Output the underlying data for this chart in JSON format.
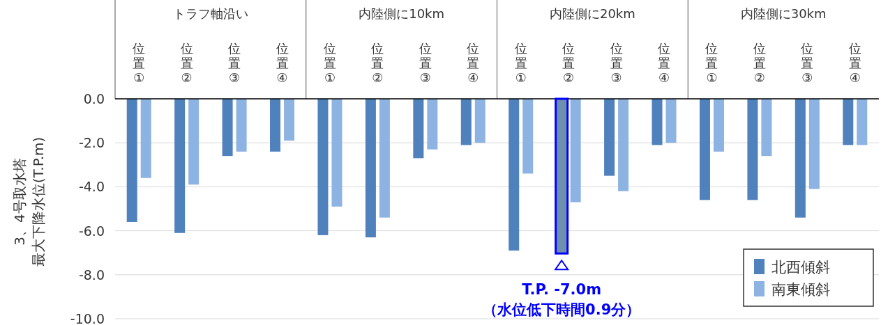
{
  "chart_data": {
    "type": "bar",
    "ylabel": "3、4号取水塔最大下降水位(T.P.m)",
    "categories": [
      "位置①",
      "位置②",
      "位置③",
      "位置④",
      "位置①",
      "位置②",
      "位置③",
      "位置④",
      "位置①",
      "位置②",
      "位置③",
      "位置④",
      "位置①",
      "位置②",
      "位置③",
      "位置④"
    ],
    "series": [
      {
        "name": "北西傾斜",
        "color": "#4f81bd",
        "colors": [
          "#4f81bd",
          "#4f81bd",
          "#4f81bd",
          "#4f81bd",
          "#4f81bd",
          "#4f81bd",
          "#4f81bd",
          "#4f81bd",
          "#4f81bd",
          "#6f8fae",
          "#4f81bd",
          "#4f81bd",
          "#4f81bd",
          "#4f81bd",
          "#4f81bd",
          "#4f81bd"
        ],
        "values": [
          -5.6,
          -6.1,
          -2.6,
          -2.4,
          -6.2,
          -6.3,
          -2.7,
          -2.1,
          -6.9,
          -7.0,
          -3.5,
          -2.1,
          -4.6,
          -4.6,
          -5.4,
          -2.1
        ]
      },
      {
        "name": "南東傾斜",
        "color": "#8db3e2",
        "values": [
          -3.6,
          -3.9,
          -2.4,
          -1.9,
          -4.9,
          -5.4,
          -2.3,
          -2.0,
          -3.4,
          -4.7,
          -4.2,
          -2.0,
          -2.4,
          -2.6,
          -4.1,
          -2.1
        ]
      }
    ],
    "ylim": [
      -10,
      0
    ],
    "yticks": [
      {
        "value": 0,
        "label": "0.0"
      },
      {
        "value": -2,
        "label": "-2.0"
      },
      {
        "value": -4,
        "label": "-4.0"
      },
      {
        "value": -6,
        "label": "-6.0"
      },
      {
        "value": -8,
        "label": "-8.0"
      },
      {
        "value": -10,
        "label": "-10.0"
      }
    ],
    "grid": "y",
    "legend": "bottom right",
    "annotations": [
      "トラフ軸沿い",
      "内陸側に10km",
      "内陸側に20km",
      "内陸側に30km",
      "T.P. -7.0m\n（水位低下時間0.9分）"
    ]
  }
}
